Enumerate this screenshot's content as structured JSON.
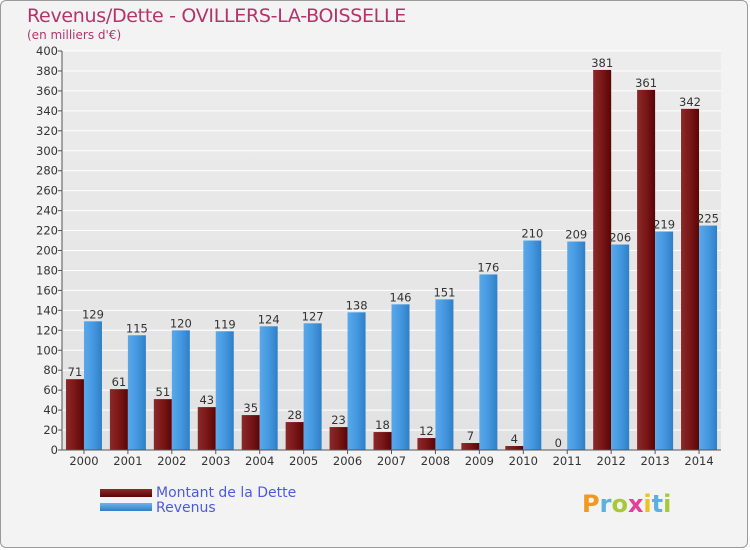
{
  "title": "Revenus/Dette - OVILLERS-LA-BOISSELLE",
  "subtitle": "(en milliers d'€)",
  "logo": {
    "text": "Proxiti"
  },
  "colors": {
    "dette": "#6e0c0c",
    "revenus": "#3b8fd6",
    "title": "#b4346a",
    "legend_text": "#4b5be0"
  },
  "legend": [
    {
      "label": "Montant de la Dette"
    },
    {
      "label": "Revenus"
    }
  ],
  "chart_data": {
    "type": "bar",
    "title": "Revenus/Dette - OVILLERS-LA-BOISSELLE",
    "subtitle": "(en milliers d'€)",
    "categories": [
      "2000",
      "2001",
      "2002",
      "2003",
      "2004",
      "2005",
      "2006",
      "2007",
      "2008",
      "2009",
      "2010",
      "2011",
      "2012",
      "2013",
      "2014"
    ],
    "series": [
      {
        "name": "Montant de la Dette",
        "values": [
          71,
          61,
          51,
          43,
          35,
          28,
          23,
          18,
          12,
          7,
          4,
          0,
          381,
          361,
          342
        ]
      },
      {
        "name": "Revenus",
        "values": [
          129,
          115,
          120,
          119,
          124,
          127,
          138,
          146,
          151,
          176,
          210,
          209,
          206,
          219,
          225
        ]
      }
    ],
    "ylim": [
      0,
      400
    ],
    "yticks": [
      0,
      20,
      40,
      60,
      80,
      100,
      120,
      140,
      160,
      180,
      200,
      220,
      240,
      260,
      280,
      300,
      320,
      340,
      360,
      380,
      400
    ],
    "grid": true,
    "legend_position": "bottom-left"
  }
}
